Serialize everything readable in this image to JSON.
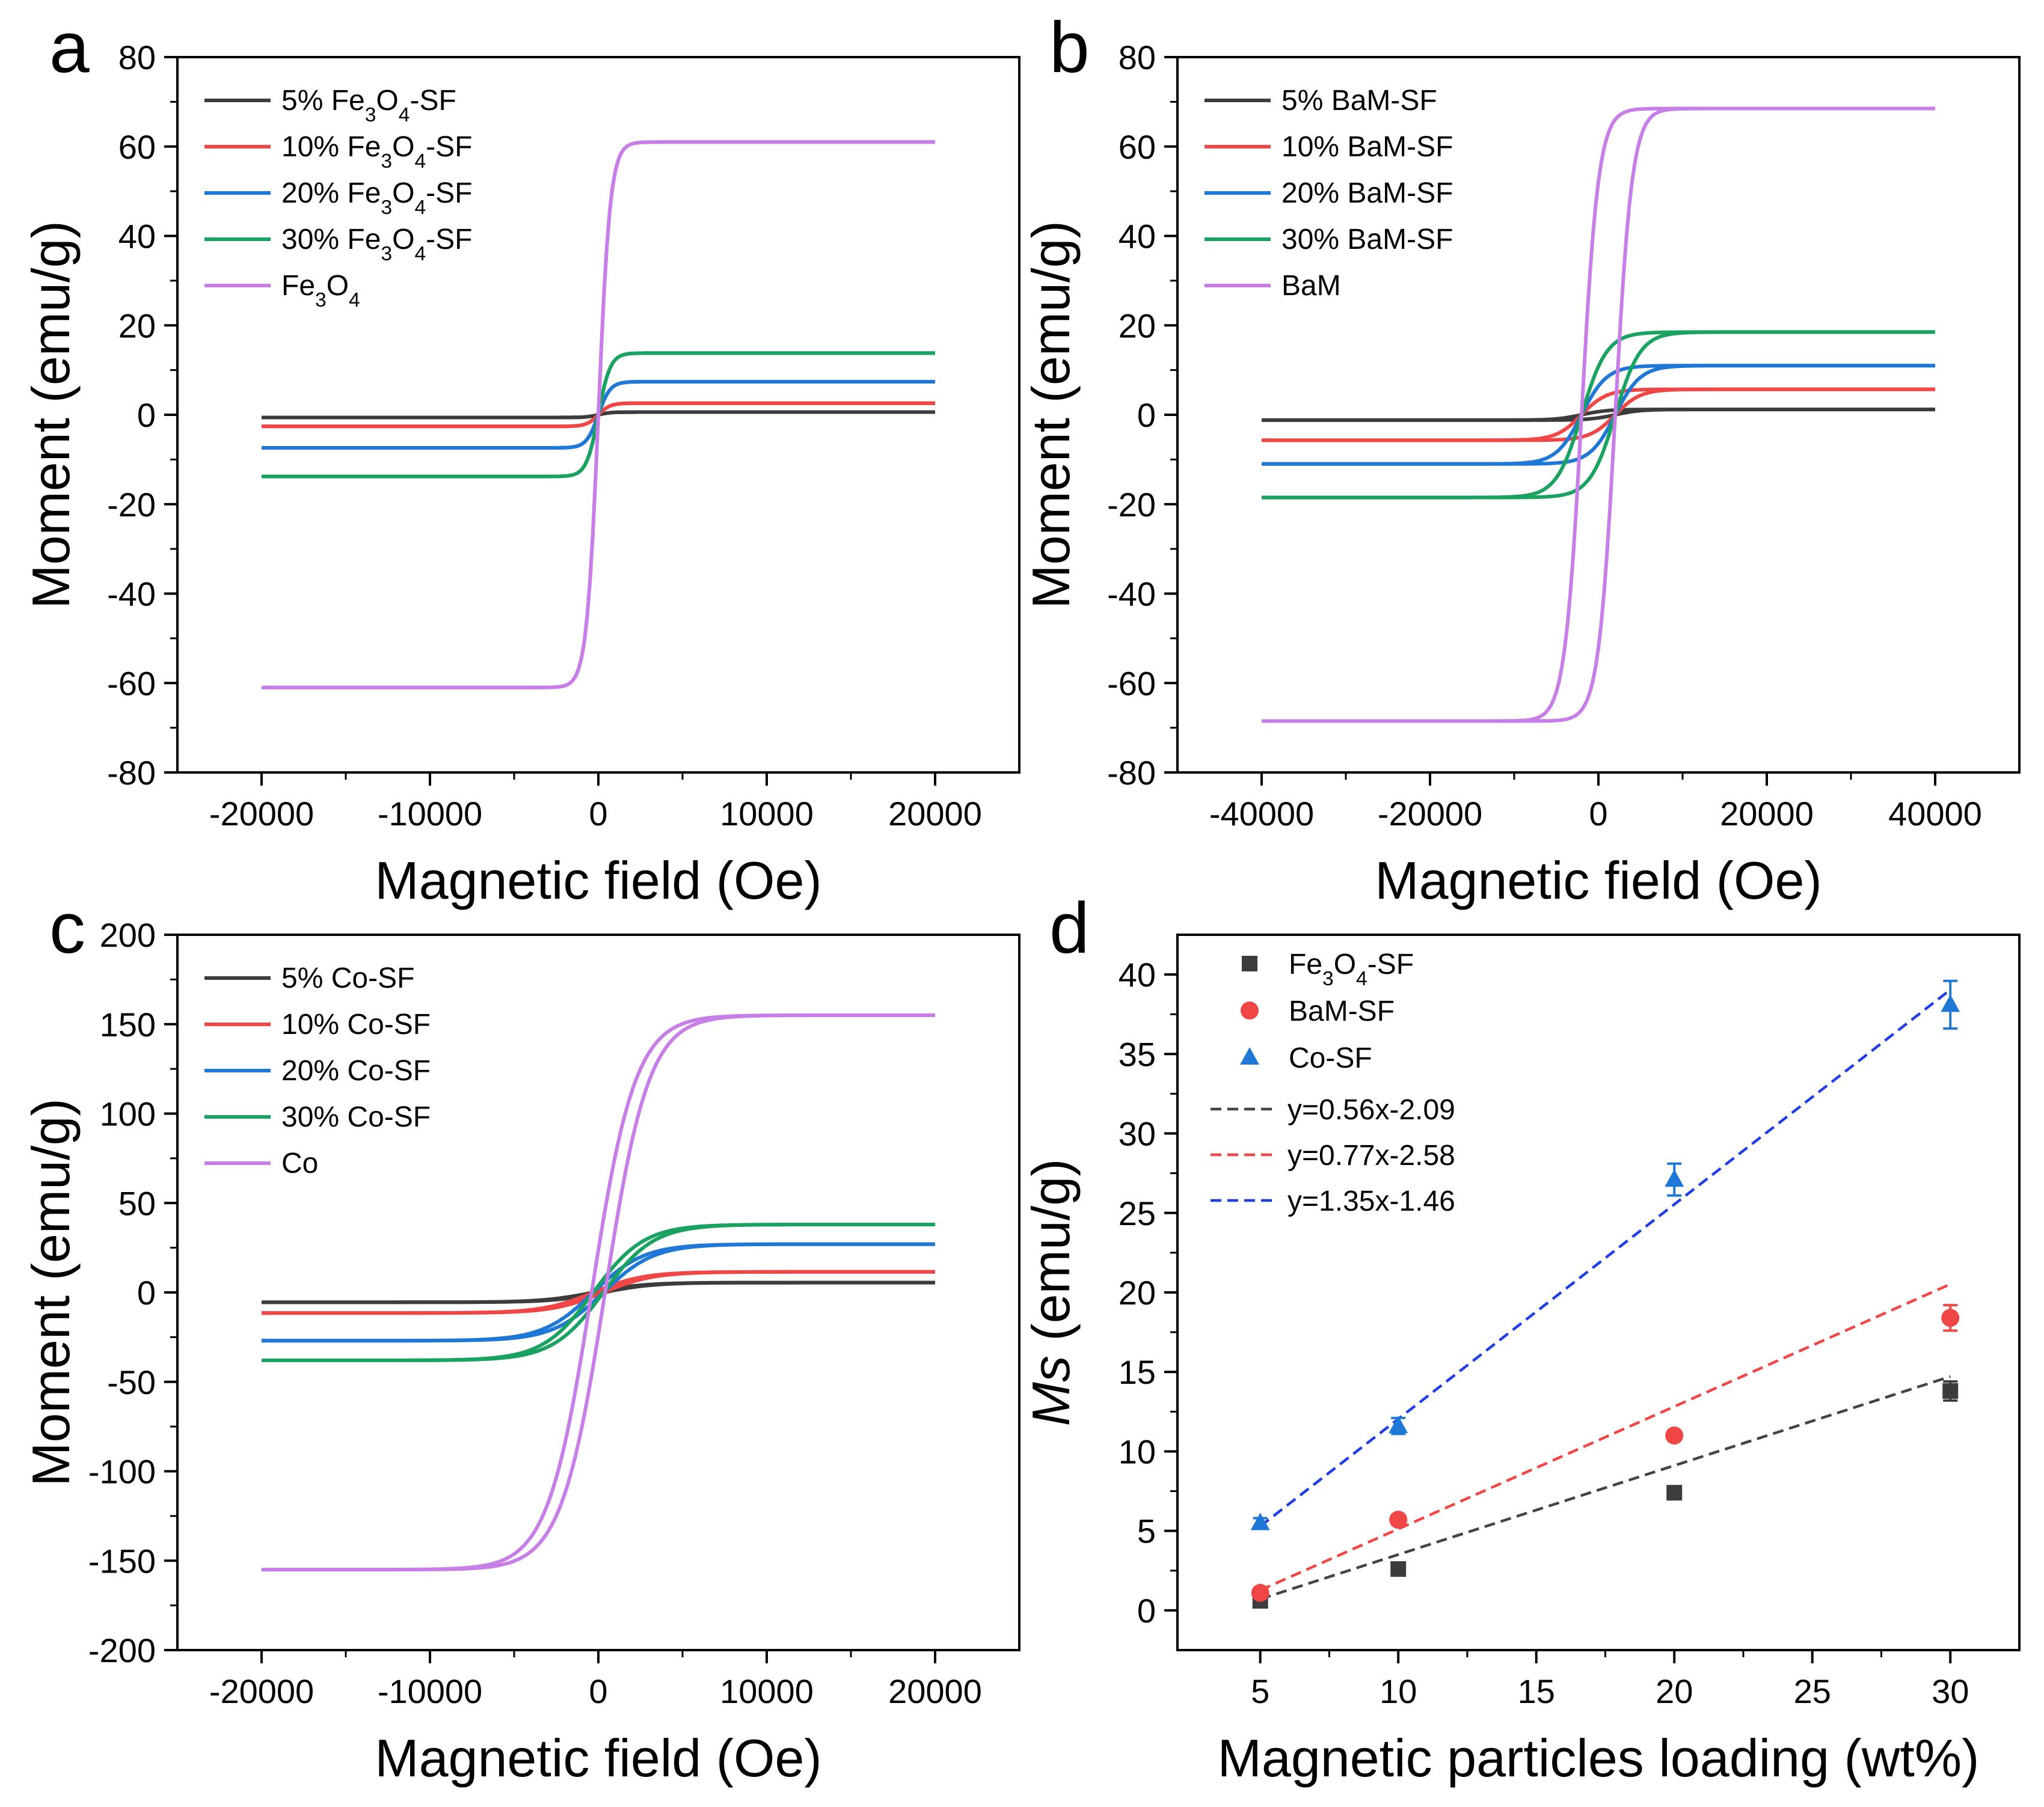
{
  "figure": {
    "panel_labels": [
      "a",
      "b",
      "c",
      "d"
    ]
  },
  "chart_data": [
    {
      "panel": "a",
      "type": "line",
      "xlabel": "Magnetic field (Oe)",
      "ylabel": "Moment (emu/g)",
      "xlim": [
        -25000,
        25000
      ],
      "ylim": [
        -80,
        80
      ],
      "xticks": [
        -20000,
        -10000,
        0,
        10000,
        20000
      ],
      "yticks": [
        -80,
        -60,
        -40,
        -20,
        0,
        20,
        40,
        60,
        80
      ],
      "legend": "top-left",
      "series": [
        {
          "name": "5% Fe3O4-SF",
          "sub": [
            "5% Fe",
            "3",
            "O",
            "4",
            "-SF"
          ],
          "color": "#3c3c3c",
          "Ms": 0.6,
          "Hs": 700,
          "Hc": 0
        },
        {
          "name": "10% Fe3O4-SF",
          "sub": [
            "10% Fe",
            "3",
            "O",
            "4",
            "-SF"
          ],
          "color": "#f04646",
          "Ms": 2.6,
          "Hs": 700,
          "Hc": 0
        },
        {
          "name": "20% Fe3O4-SF",
          "sub": [
            "20% Fe",
            "3",
            "O",
            "4",
            "-SF"
          ],
          "color": "#1f78d6",
          "Ms": 7.4,
          "Hs": 700,
          "Hc": 0
        },
        {
          "name": "30% Fe3O4-SF",
          "sub": [
            "30% Fe",
            "3",
            "O",
            "4",
            "-SF"
          ],
          "color": "#1aa260",
          "Ms": 13.8,
          "Hs": 700,
          "Hc": 0
        },
        {
          "name": "Fe3O4",
          "sub": [
            "Fe",
            "3",
            "O",
            "4",
            ""
          ],
          "color": "#c77ee6",
          "Ms": 61,
          "Hs": 700,
          "Hc": 0
        }
      ]
    },
    {
      "panel": "b",
      "type": "line",
      "xlabel": "Magnetic field (Oe)",
      "ylabel": "Moment (emu/g)",
      "xlim": [
        -50000,
        50000
      ],
      "ylim": [
        -80,
        80
      ],
      "xticks": [
        -40000,
        -20000,
        0,
        20000,
        40000
      ],
      "yticks": [
        -80,
        -60,
        -40,
        -20,
        0,
        20,
        40,
        60,
        80
      ],
      "legend": "top-left",
      "series": [
        {
          "name": "5% BaM-SF",
          "color": "#3c3c3c",
          "Ms": 1.2,
          "Hs": 3000,
          "Hc": 2000
        },
        {
          "name": "10% BaM-SF",
          "color": "#f04646",
          "Ms": 5.7,
          "Hs": 3000,
          "Hc": 2000
        },
        {
          "name": "20% BaM-SF",
          "color": "#1f78d6",
          "Ms": 11,
          "Hs": 3000,
          "Hc": 2000
        },
        {
          "name": "30% BaM-SF",
          "color": "#1aa260",
          "Ms": 18.5,
          "Hs": 3000,
          "Hc": 2000
        },
        {
          "name": "BaM",
          "color": "#c77ee6",
          "Ms": 68.5,
          "Hs": 2000,
          "Hc": 2000
        }
      ]
    },
    {
      "panel": "c",
      "type": "line",
      "xlabel": "Magnetic field (Oe)",
      "ylabel": "Moment (emu/g)",
      "xlim": [
        -25000,
        25000
      ],
      "ylim": [
        -200,
        200
      ],
      "xticks": [
        -20000,
        -10000,
        0,
        10000,
        20000
      ],
      "yticks": [
        -200,
        -150,
        -100,
        -50,
        0,
        50,
        100,
        150,
        200
      ],
      "legend": "top-left",
      "series": [
        {
          "name": "5% Co-SF",
          "color": "#3c3c3c",
          "Ms": 5.5,
          "Hs": 3000,
          "Hc": 300
        },
        {
          "name": "10% Co-SF",
          "color": "#f04646",
          "Ms": 11.5,
          "Hs": 3000,
          "Hc": 300
        },
        {
          "name": "20% Co-SF",
          "color": "#1f78d6",
          "Ms": 27,
          "Hs": 3000,
          "Hc": 300
        },
        {
          "name": "30% Co-SF",
          "color": "#1aa260",
          "Ms": 38,
          "Hs": 3000,
          "Hc": 300
        },
        {
          "name": "Co",
          "color": "#c77ee6",
          "Ms": 155,
          "Hs": 2600,
          "Hc": 400
        }
      ]
    },
    {
      "panel": "d",
      "type": "scatter",
      "xlabel": "Magnetic particles loading (wt%)",
      "ylabel": "Ms (emu/g)",
      "xlim": [
        2,
        32.5
      ],
      "ylim": [
        -2.5,
        42.5
      ],
      "xticks": [
        5,
        10,
        15,
        20,
        25,
        30
      ],
      "yticks": [
        0,
        5,
        10,
        15,
        20,
        25,
        30,
        35,
        40
      ],
      "legend": "top-left",
      "series": [
        {
          "name": "Fe3O4-SF",
          "sub": [
            "Fe",
            "3",
            "O",
            "4",
            "-SF"
          ],
          "marker": "square",
          "color": "#3c3c3c",
          "x": [
            5,
            10,
            20,
            30
          ],
          "y": [
            0.6,
            2.6,
            7.4,
            13.8
          ],
          "err": [
            0.2,
            0.3,
            0.3,
            0.6
          ]
        },
        {
          "name": "BaM-SF",
          "marker": "circle",
          "color": "#f04646",
          "x": [
            5,
            10,
            20,
            30
          ],
          "y": [
            1.1,
            5.7,
            11,
            18.4
          ],
          "err": [
            0.2,
            0.3,
            0.3,
            0.8
          ]
        },
        {
          "name": "Co-SF",
          "marker": "triangle",
          "color": "#1f78d6",
          "x": [
            5,
            10,
            20,
            30
          ],
          "y": [
            5.5,
            11.6,
            27.1,
            38.1
          ],
          "err": [
            0.3,
            0.5,
            1.0,
            1.5
          ]
        }
      ],
      "fits": [
        {
          "label": "y=0.56x-2.09",
          "slope": 0.56,
          "intercept": -2.09,
          "color": "#444444"
        },
        {
          "label": "y=0.77x-2.58",
          "slope": 0.77,
          "intercept": -2.58,
          "color": "#f04646"
        },
        {
          "label": "y=1.35x-1.46",
          "slope": 1.35,
          "intercept": -1.46,
          "color": "#1f3ee8"
        }
      ]
    }
  ]
}
